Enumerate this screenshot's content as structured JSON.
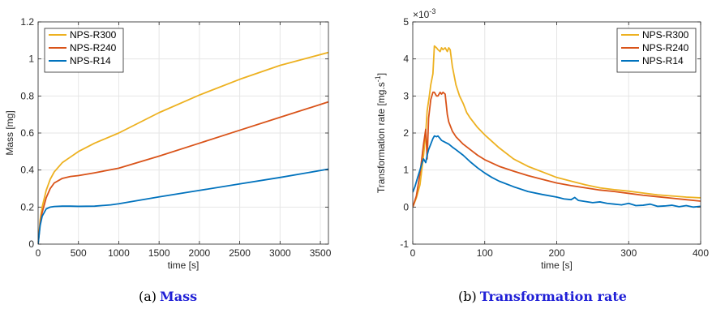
{
  "chart_data": [
    {
      "type": "line",
      "title": "",
      "xlabel": "time [s]",
      "ylabel": "Mass [mg]",
      "xlim": [
        0,
        3600
      ],
      "ylim": [
        0,
        1.2
      ],
      "xticks": [
        0,
        500,
        1000,
        1500,
        2000,
        2500,
        3000,
        3500
      ],
      "yticks": [
        0,
        0.2,
        0.4,
        0.6,
        0.8,
        1,
        1.2
      ],
      "xtick_labels": [
        "0",
        "500",
        "1000",
        "1500",
        "2000",
        "2500",
        "3000",
        "3500"
      ],
      "ytick_labels": [
        "0",
        "0.2",
        "0.4",
        "0.6",
        "0.8",
        "1",
        "1.2"
      ],
      "grid": true,
      "legend_position": "top-left",
      "series": [
        {
          "name": "NPS-R300",
          "color": "#EDB120",
          "x": [
            0,
            25,
            50,
            100,
            150,
            200,
            300,
            400,
            500,
            700,
            1000,
            1500,
            2000,
            2500,
            3000,
            3600
          ],
          "y": [
            0,
            0.13,
            0.2,
            0.29,
            0.35,
            0.39,
            0.44,
            0.47,
            0.5,
            0.545,
            0.6,
            0.71,
            0.805,
            0.89,
            0.965,
            1.035
          ]
        },
        {
          "name": "NPS-R240",
          "color": "#D95319",
          "x": [
            0,
            25,
            50,
            100,
            150,
            200,
            300,
            400,
            500,
            700,
            1000,
            1500,
            2000,
            2500,
            3000,
            3600
          ],
          "y": [
            0,
            0.11,
            0.17,
            0.25,
            0.3,
            0.33,
            0.355,
            0.365,
            0.37,
            0.385,
            0.41,
            0.475,
            0.545,
            0.615,
            0.685,
            0.768
          ]
        },
        {
          "name": "NPS-R14",
          "color": "#0072BD",
          "x": [
            0,
            25,
            50,
            100,
            150,
            200,
            300,
            400,
            500,
            700,
            900,
            1000,
            1500,
            2000,
            2500,
            3000,
            3600
          ],
          "y": [
            0,
            0.1,
            0.15,
            0.19,
            0.2,
            0.203,
            0.205,
            0.205,
            0.204,
            0.205,
            0.212,
            0.218,
            0.255,
            0.29,
            0.325,
            0.36,
            0.405
          ]
        }
      ],
      "caption_index": "(a)",
      "caption_title": "Mass"
    },
    {
      "type": "line",
      "title": "",
      "xlabel": "time [s]",
      "ylabel": "Transformation rate [mg.s",
      "ylabel_sup": "-1",
      "ylabel_end": "]",
      "exponent_base": "×10",
      "exponent_power": "-3",
      "xlim": [
        0,
        400
      ],
      "ylim": [
        -1,
        5
      ],
      "xticks": [
        0,
        100,
        200,
        300,
        400
      ],
      "yticks": [
        -1,
        0,
        1,
        2,
        3,
        4,
        5
      ],
      "xtick_labels": [
        "0",
        "100",
        "200",
        "300",
        "400"
      ],
      "ytick_labels": [
        "-1",
        "0",
        "1",
        "2",
        "3",
        "4",
        "5"
      ],
      "grid": true,
      "legend_position": "top-right",
      "series": [
        {
          "name": "NPS-R300",
          "color": "#EDB120",
          "x": [
            0,
            5,
            10,
            15,
            18,
            20,
            23,
            25,
            28,
            30,
            33,
            35,
            38,
            40,
            42,
            45,
            48,
            50,
            52,
            55,
            58,
            60,
            65,
            70,
            75,
            80,
            90,
            100,
            120,
            140,
            160,
            180,
            200,
            220,
            240,
            260,
            280,
            300,
            320,
            340,
            360,
            380,
            400
          ],
          "y": [
            0,
            0.25,
            0.6,
            1.4,
            2.0,
            2.6,
            3.0,
            3.3,
            3.6,
            4.35,
            4.3,
            4.25,
            4.2,
            4.3,
            4.25,
            4.3,
            4.2,
            4.3,
            4.25,
            3.8,
            3.5,
            3.3,
            3.0,
            2.8,
            2.55,
            2.4,
            2.15,
            1.95,
            1.6,
            1.3,
            1.1,
            0.95,
            0.8,
            0.7,
            0.6,
            0.52,
            0.47,
            0.43,
            0.38,
            0.33,
            0.3,
            0.27,
            0.25
          ]
        },
        {
          "name": "NPS-R240",
          "color": "#D95319",
          "x": [
            0,
            5,
            10,
            15,
            18,
            20,
            22,
            25,
            28,
            30,
            33,
            35,
            38,
            40,
            42,
            45,
            48,
            50,
            55,
            60,
            70,
            80,
            90,
            100,
            120,
            140,
            160,
            180,
            200,
            220,
            240,
            260,
            280,
            300,
            320,
            340,
            360,
            380,
            400
          ],
          "y": [
            0,
            0.3,
            0.9,
            1.7,
            2.1,
            1.3,
            2.4,
            2.9,
            3.1,
            3.1,
            3.0,
            3.0,
            3.1,
            3.05,
            3.1,
            3.05,
            2.5,
            2.3,
            2.05,
            1.9,
            1.7,
            1.55,
            1.4,
            1.28,
            1.1,
            0.97,
            0.85,
            0.75,
            0.65,
            0.58,
            0.52,
            0.46,
            0.42,
            0.37,
            0.32,
            0.28,
            0.24,
            0.2,
            0.16
          ]
        },
        {
          "name": "NPS-R14",
          "color": "#0072BD",
          "x": [
            0,
            3,
            6,
            10,
            13,
            15,
            18,
            20,
            22,
            25,
            28,
            30,
            33,
            35,
            38,
            40,
            45,
            50,
            55,
            60,
            70,
            80,
            90,
            100,
            110,
            120,
            140,
            160,
            180,
            200,
            210,
            220,
            225,
            230,
            240,
            250,
            260,
            270,
            280,
            290,
            300,
            310,
            320,
            330,
            340,
            350,
            360,
            370,
            380,
            390,
            400
          ],
          "y": [
            0.4,
            0.55,
            0.75,
            1.0,
            1.2,
            1.3,
            1.2,
            1.4,
            1.55,
            1.7,
            1.85,
            1.92,
            1.9,
            1.92,
            1.85,
            1.8,
            1.75,
            1.7,
            1.62,
            1.55,
            1.4,
            1.22,
            1.06,
            0.92,
            0.8,
            0.7,
            0.55,
            0.42,
            0.34,
            0.27,
            0.22,
            0.2,
            0.26,
            0.18,
            0.15,
            0.12,
            0.14,
            0.1,
            0.08,
            0.06,
            0.1,
            0.04,
            0.05,
            0.08,
            0.02,
            0.03,
            0.05,
            0.01,
            0.04,
            0.0,
            0.02
          ]
        }
      ],
      "caption_index": "(b)",
      "caption_title": "Transformation rate"
    }
  ]
}
